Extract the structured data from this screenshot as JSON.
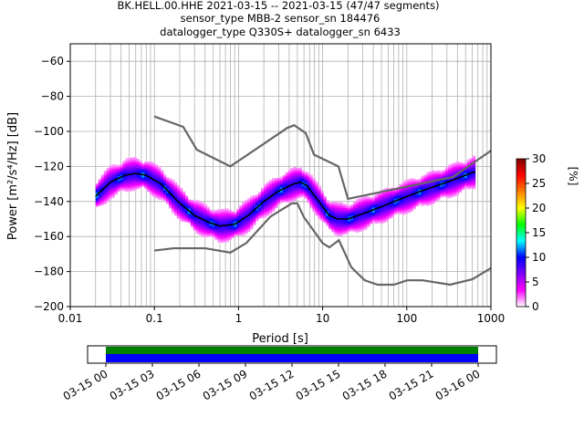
{
  "title_lines": [
    "BK.HELL.00.HHE   2021-03-15 -- 2021-03-15  (47/47 segments)",
    "sensor_type MBB-2 sensor_sn 184476",
    "datalogger_type Q330S+ datalogger_sn 6433"
  ],
  "chart_data": {
    "type": "heatmap",
    "xlabel": "Period [s]",
    "ylabel": "Power [m²/s⁴/Hz] [dB]",
    "x_scale": "log",
    "xlim": [
      0.01,
      1000
    ],
    "ylim": [
      -200,
      -50
    ],
    "x_ticks": [
      {
        "value": 0.01,
        "label": "0.01"
      },
      {
        "value": 0.1,
        "label": "0.1"
      },
      {
        "value": 1,
        "label": "1"
      },
      {
        "value": 10,
        "label": "10"
      },
      {
        "value": 100,
        "label": "100"
      },
      {
        "value": 1000,
        "label": "1000"
      }
    ],
    "y_ticks": [
      {
        "value": -60,
        "label": "−60"
      },
      {
        "value": -80,
        "label": "−80"
      },
      {
        "value": -100,
        "label": "−100"
      },
      {
        "value": -120,
        "label": "−120"
      },
      {
        "value": -140,
        "label": "−140"
      },
      {
        "value": -160,
        "label": "−160"
      },
      {
        "value": -180,
        "label": "−180"
      },
      {
        "value": -200,
        "label": "−200"
      }
    ],
    "grid": true,
    "period_range": [
      0.02,
      650
    ],
    "series": [
      {
        "role": "high_noise_model",
        "values": [
          [
            0.1,
            -91.5
          ],
          [
            0.22,
            -97.4
          ],
          [
            0.32,
            -110.5
          ],
          [
            0.8,
            -120
          ],
          [
            3.8,
            -98
          ],
          [
            4.6,
            -96.5
          ],
          [
            6.3,
            -101
          ],
          [
            7.9,
            -113.3
          ],
          [
            15.4,
            -120
          ],
          [
            20,
            -138.5
          ],
          [
            354.8,
            -126
          ],
          [
            1000,
            -111
          ]
        ]
      },
      {
        "role": "low_noise_model",
        "values": [
          [
            0.1,
            -168
          ],
          [
            0.17,
            -166.7
          ],
          [
            0.4,
            -166.7
          ],
          [
            0.8,
            -169.2
          ],
          [
            1.24,
            -163.7
          ],
          [
            2.4,
            -148.6
          ],
          [
            4.3,
            -141.1
          ],
          [
            5,
            -141.1
          ],
          [
            6,
            -149
          ],
          [
            10,
            -163.8
          ],
          [
            12,
            -166.2
          ],
          [
            15.6,
            -162.1
          ],
          [
            21.9,
            -177.5
          ],
          [
            31.6,
            -185
          ],
          [
            45,
            -187.5
          ],
          [
            70,
            -187.5
          ],
          [
            101,
            -185
          ],
          [
            154,
            -185
          ],
          [
            328,
            -187.5
          ],
          [
            600,
            -184.4
          ],
          [
            1000,
            -178
          ]
        ]
      },
      {
        "role": "mode",
        "values": [
          [
            0.02,
            -137
          ],
          [
            0.03,
            -129
          ],
          [
            0.045,
            -125
          ],
          [
            0.06,
            -124
          ],
          [
            0.08,
            -125
          ],
          [
            0.12,
            -130
          ],
          [
            0.2,
            -141
          ],
          [
            0.3,
            -148
          ],
          [
            0.45,
            -152
          ],
          [
            0.6,
            -154
          ],
          [
            0.9,
            -153
          ],
          [
            1.3,
            -148
          ],
          [
            2,
            -140
          ],
          [
            3,
            -134
          ],
          [
            4.5,
            -130
          ],
          [
            5.5,
            -129
          ],
          [
            6.5,
            -131
          ],
          [
            9,
            -140
          ],
          [
            12,
            -148
          ],
          [
            15,
            -150
          ],
          [
            20,
            -150
          ],
          [
            30,
            -147
          ],
          [
            50,
            -143
          ],
          [
            80,
            -139
          ],
          [
            150,
            -134
          ],
          [
            300,
            -129
          ],
          [
            500,
            -125
          ],
          [
            650,
            -123
          ]
        ]
      }
    ],
    "colorbar": {
      "label": "[%]",
      "min": 0,
      "max": 30,
      "ticks": [
        {
          "value": 0,
          "label": "0"
        },
        {
          "value": 5,
          "label": "5"
        },
        {
          "value": 10,
          "label": "10"
        },
        {
          "value": 15,
          "label": "15"
        },
        {
          "value": 20,
          "label": "20"
        },
        {
          "value": 25,
          "label": "25"
        },
        {
          "value": 30,
          "label": "30"
        }
      ],
      "colors": [
        "#ffffff",
        "#ff00ff",
        "#7f00ff",
        "#0000ff",
        "#00ffff",
        "#00ff00",
        "#ffff00",
        "#ff7f00",
        "#ff0000",
        "#7f0000"
      ]
    },
    "coverage": {
      "type": "timeline",
      "xlim": [
        "03-15 00",
        "03-16 01"
      ],
      "data_start_hour": 0,
      "data_end_hour": 24,
      "bands": [
        {
          "color": "#008000"
        },
        {
          "color": "#0000ff"
        }
      ],
      "x_ticks": [
        "03-15 00",
        "03-15 03",
        "03-15 06",
        "03-15 09",
        "03-15 12",
        "03-15 15",
        "03-15 18",
        "03-15 21",
        "03-16 00"
      ]
    }
  }
}
